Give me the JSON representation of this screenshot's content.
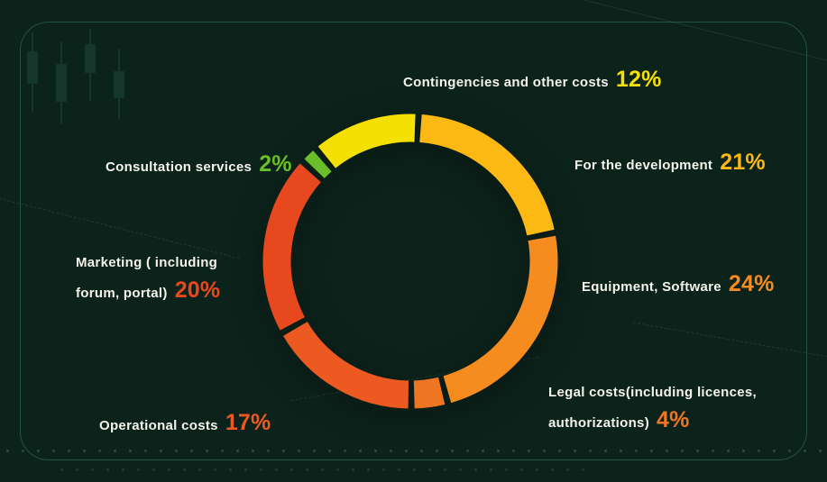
{
  "theme": {
    "background": "#0c231b",
    "frame_border": "#3c6e55",
    "label_text": "#f4f3ec"
  },
  "chart_data": {
    "type": "pie",
    "donut": true,
    "title": "",
    "legend_position": "around",
    "start_angle": -40,
    "gap_degrees": 2.5,
    "segments": [
      {
        "label": "Contingencies and other costs",
        "value": 12,
        "color": "#f5e003"
      },
      {
        "label": "For the development",
        "value": 21,
        "color": "#fcb813"
      },
      {
        "label": "Equipment, Software",
        "value": 24,
        "color": "#f68b1f"
      },
      {
        "label": "Legal costs(including licences, authorizations)",
        "value": 4,
        "color": "#ee7522"
      },
      {
        "label": "Operational costs",
        "value": 17,
        "color": "#ec5a22"
      },
      {
        "label": "Marketing ( including forum, portal)",
        "value": 20,
        "color": "#e7481d"
      },
      {
        "label": "Consultation services",
        "value": 2,
        "color": "#6abe28"
      }
    ]
  },
  "labels": {
    "contingencies": {
      "text": "Contingencies and other costs",
      "pct": "12%"
    },
    "consultation": {
      "text": "Consultation services",
      "pct": "2%"
    },
    "development": {
      "text": "For the development",
      "pct": "21%"
    },
    "marketing": {
      "line1": "Marketing ( including",
      "line2": "forum, portal)",
      "pct": "20%"
    },
    "equipment": {
      "text": "Equipment, Software",
      "pct": "24%"
    },
    "legal": {
      "line1": "Legal costs(including licences,",
      "line2": "authorizations)",
      "pct": "4%"
    },
    "operational": {
      "text": "Operational costs",
      "pct": "17%"
    }
  }
}
